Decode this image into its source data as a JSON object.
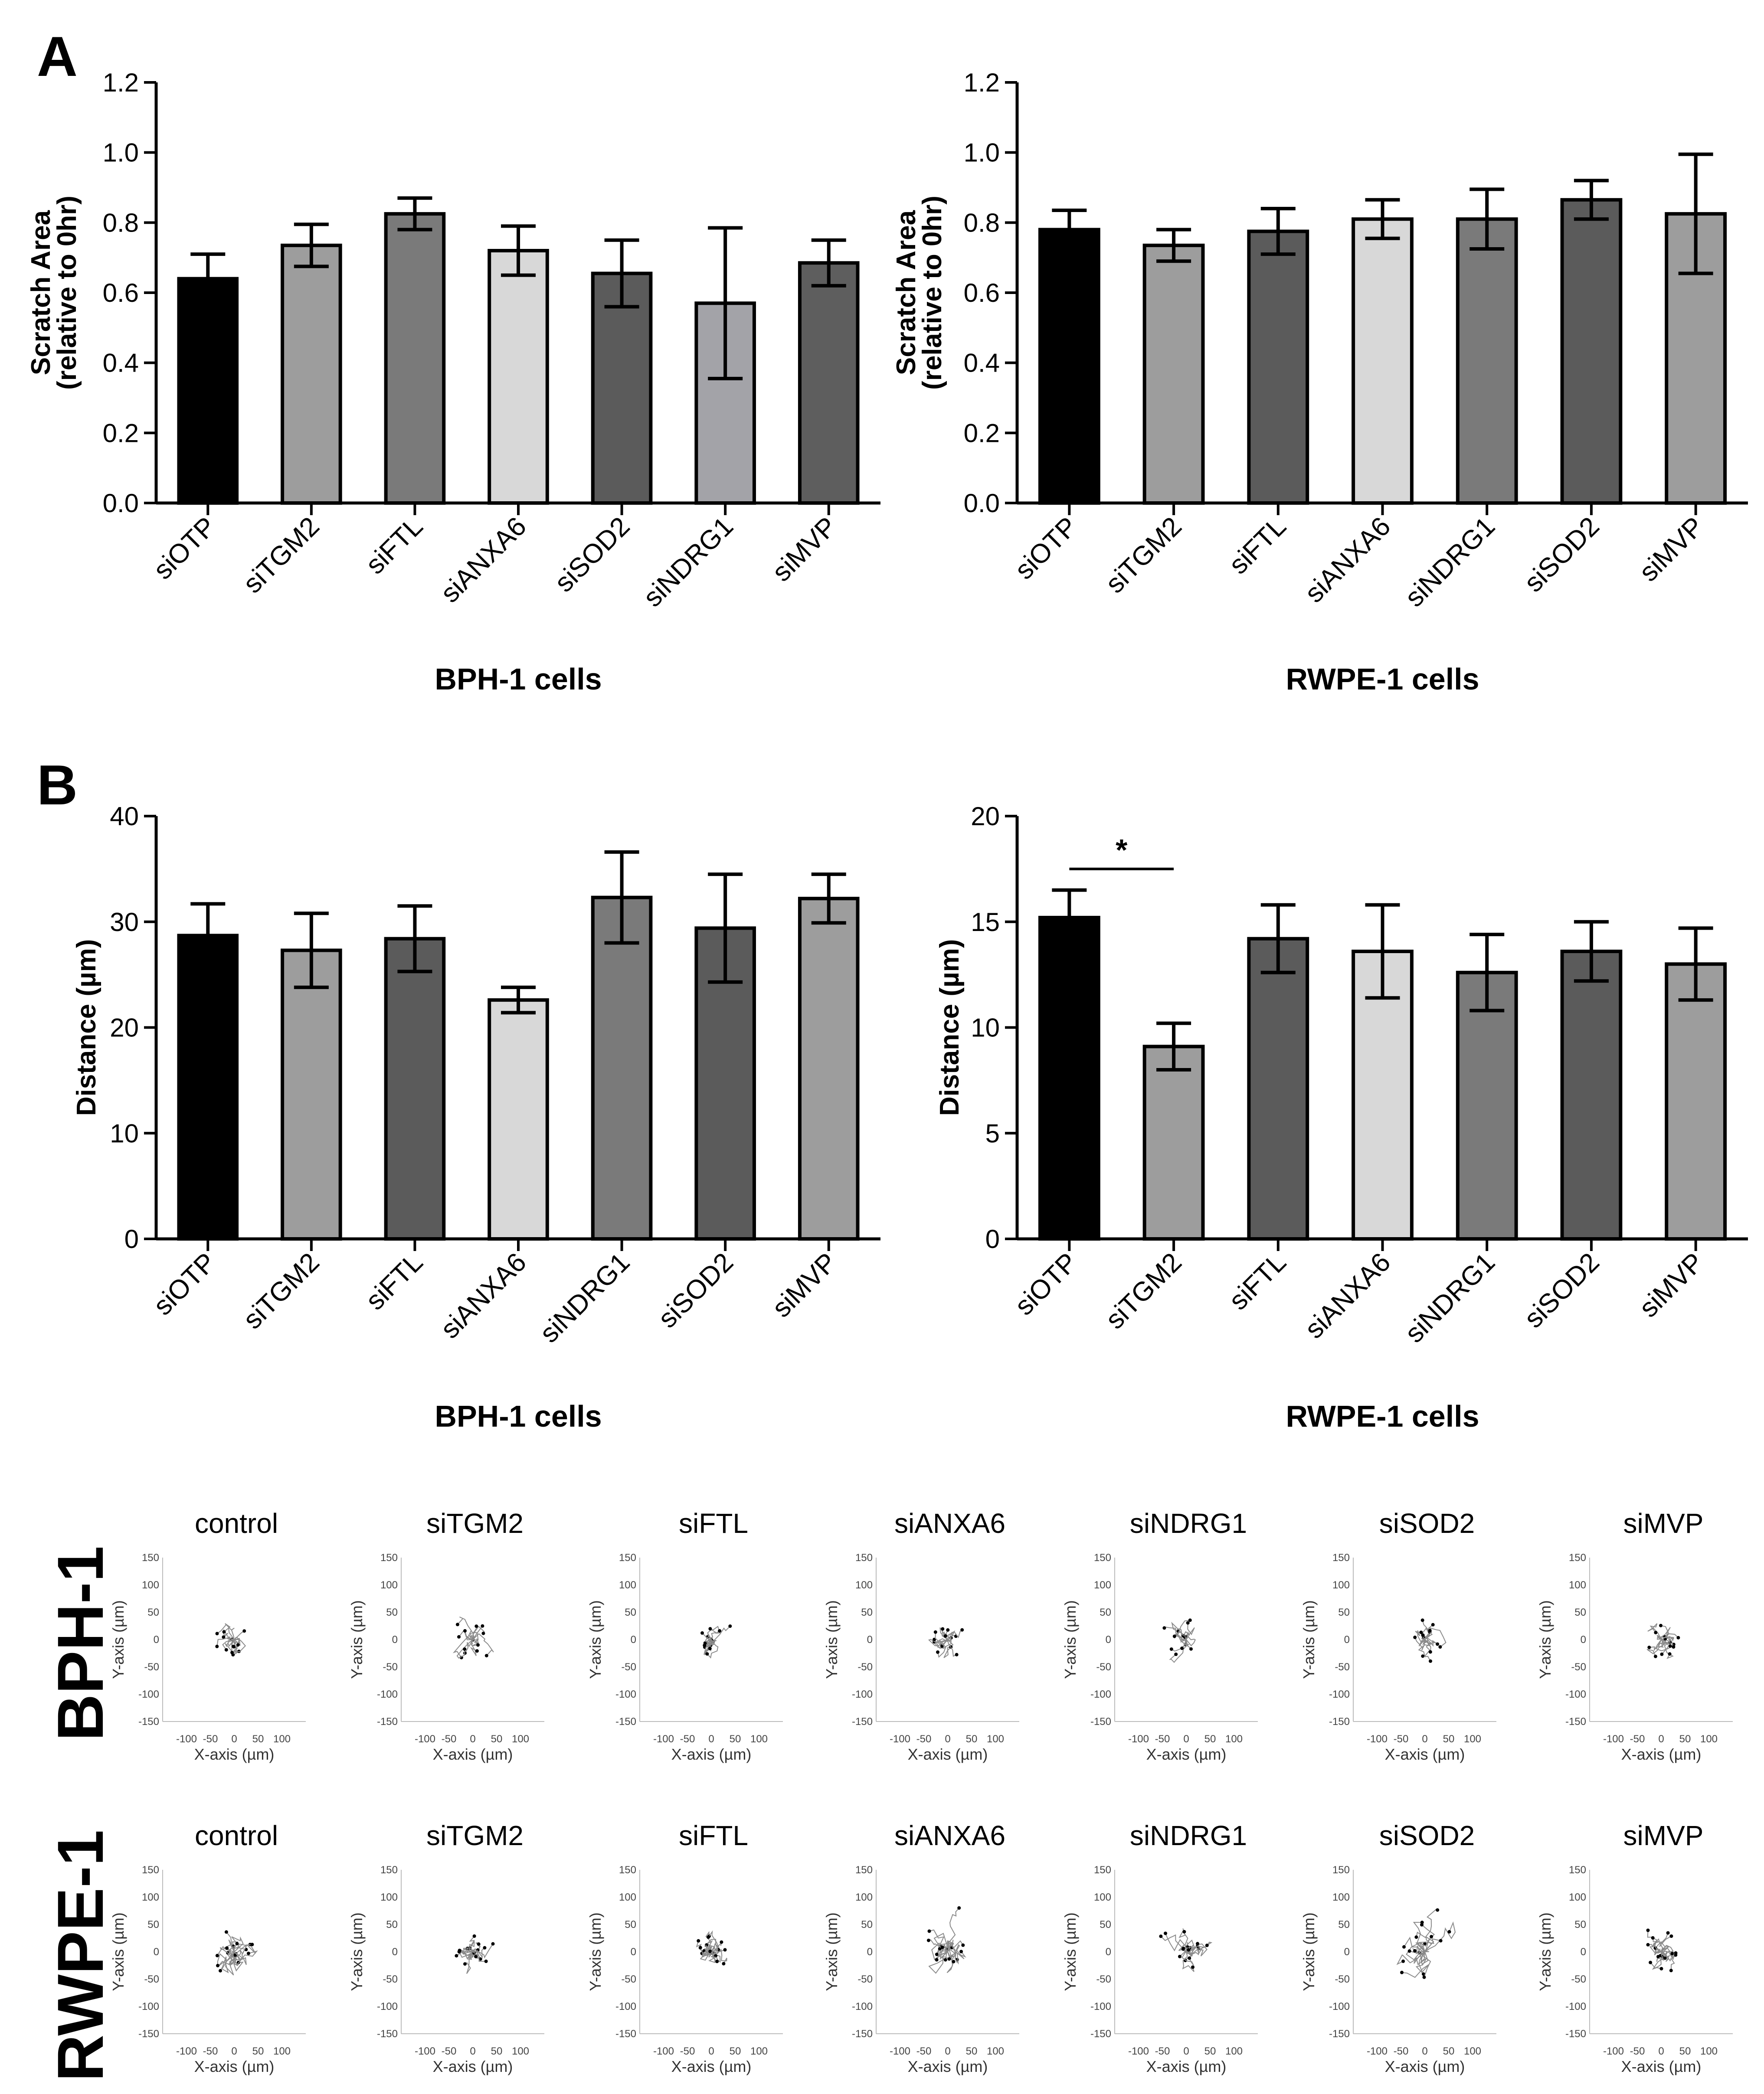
{
  "panels": {
    "a": "A",
    "b": "B"
  },
  "chart_data": [
    {
      "type": "bar",
      "title": "BPH-1 cells",
      "ylabel_line1": "Scratch Area",
      "ylabel_line2": "(relative to 0hr)",
      "xlabel": "BPH-1 cells",
      "ylim": [
        0,
        1.2
      ],
      "yticks": [
        "0.0",
        "0.2",
        "0.4",
        "0.6",
        "0.8",
        "1.0",
        "1.2"
      ],
      "categories": [
        "siOTP",
        "siTGM2",
        "siFTL",
        "siANXA6",
        "siSOD2",
        "siNDRG1",
        "siMVP"
      ],
      "values": [
        0.64,
        0.735,
        0.825,
        0.72,
        0.655,
        0.57,
        0.685
      ],
      "errors": [
        0.07,
        0.06,
        0.045,
        0.07,
        0.095,
        0.215,
        0.065
      ],
      "colors": [
        "#000000",
        "#9d9d9d",
        "#7a7a7a",
        "#d8d8d8",
        "#5b5b5b",
        "#a3a3a8",
        "#5e5e5e"
      ]
    },
    {
      "type": "bar",
      "title": "RWPE-1 cells",
      "ylabel_line1": "Scratch Area",
      "ylabel_line2": "(relative to 0hr)",
      "xlabel": "RWPE-1 cells",
      "ylim": [
        0,
        1.2
      ],
      "yticks": [
        "0.0",
        "0.2",
        "0.4",
        "0.6",
        "0.8",
        "1.0",
        "1.2"
      ],
      "categories": [
        "siOTP",
        "siTGM2",
        "siFTL",
        "siANXA6",
        "siNDRG1",
        "siSOD2",
        "siMVP"
      ],
      "values": [
        0.78,
        0.735,
        0.775,
        0.81,
        0.81,
        0.865,
        0.825
      ],
      "errors": [
        0.055,
        0.045,
        0.065,
        0.055,
        0.085,
        0.055,
        0.17
      ],
      "colors": [
        "#000000",
        "#9d9d9d",
        "#5b5b5b",
        "#d8d8d8",
        "#7a7a7a",
        "#5b5b5b",
        "#9d9d9d"
      ]
    },
    {
      "type": "bar",
      "title": "BPH-1 cells",
      "ylabel_line1": "Distance (µm)",
      "ylabel_line2": "",
      "xlabel": "BPH-1 cells",
      "ylim": [
        0,
        40
      ],
      "yticks": [
        "0",
        "10",
        "20",
        "30",
        "40"
      ],
      "categories": [
        "siOTP",
        "siTGM2",
        "siFTL",
        "siANXA6",
        "siNDRG1",
        "siSOD2",
        "siMVP"
      ],
      "values": [
        28.7,
        27.3,
        28.4,
        22.6,
        32.3,
        29.4,
        32.2
      ],
      "errors": [
        3.0,
        3.5,
        3.1,
        1.2,
        4.3,
        5.1,
        2.3
      ],
      "colors": [
        "#000000",
        "#9d9d9d",
        "#5b5b5b",
        "#d8d8d8",
        "#7a7a7a",
        "#5b5b5b",
        "#9d9d9d"
      ]
    },
    {
      "type": "bar",
      "title": "RWPE-1 cells",
      "ylabel_line1": "Distance (µm)",
      "ylabel_line2": "",
      "xlabel": "RWPE-1 cells",
      "ylim": [
        0,
        20
      ],
      "yticks": [
        "0",
        "5",
        "10",
        "15",
        "20"
      ],
      "categories": [
        "siOTP",
        "siTGM2",
        "siFTL",
        "siANXA6",
        "siNDRG1",
        "siSOD2",
        "siMVP"
      ],
      "values": [
        15.2,
        9.1,
        14.2,
        13.6,
        12.6,
        13.6,
        13.0
      ],
      "errors": [
        1.3,
        1.1,
        1.6,
        2.2,
        1.8,
        1.4,
        1.7
      ],
      "colors": [
        "#000000",
        "#9d9d9d",
        "#5b5b5b",
        "#d8d8d8",
        "#7a7a7a",
        "#5b5b5b",
        "#9d9d9d"
      ],
      "significance": {
        "from": 0,
        "to": 1,
        "label": "*"
      }
    }
  ],
  "trajectories": {
    "rows": [
      "BPH-1",
      "RWPE-1"
    ],
    "titles": [
      "control",
      "siTGM2",
      "siFTL",
      "siANXA6",
      "siNDRG1",
      "siSOD2",
      "siMVP"
    ],
    "xlabel": "X-axis (µm)",
    "ylabel": "Y-axis (µm)",
    "xticks": [
      "-100",
      "-50",
      "0",
      "50",
      "100"
    ],
    "yticks": [
      "150",
      "100",
      "50",
      "0",
      "-50",
      "-100",
      "-150"
    ]
  }
}
